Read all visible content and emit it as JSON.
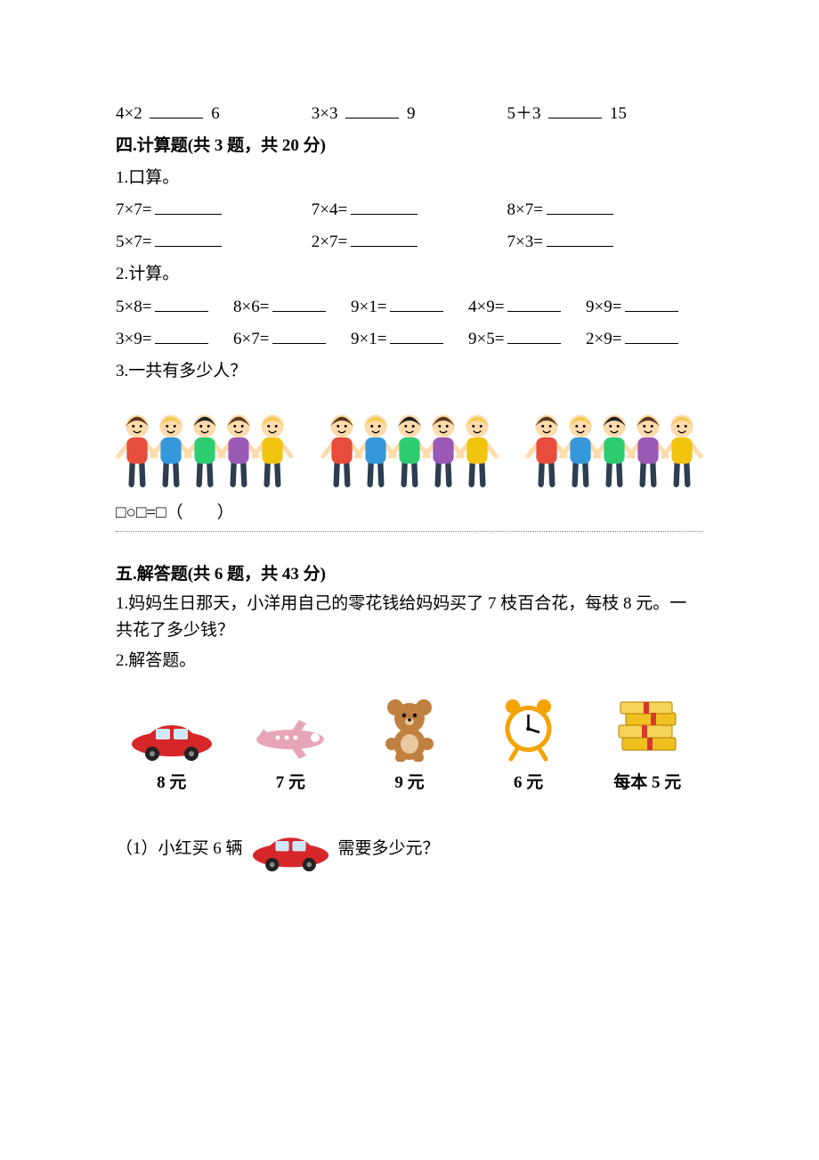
{
  "topRow": {
    "a": "4×2",
    "a_rhs": "6",
    "b": "3×3",
    "b_rhs": "9",
    "c": "5＋3",
    "c_rhs": "15"
  },
  "section4": {
    "heading": "四.计算题(共 3 题，共 20 分)",
    "q1_label": "1.口算。",
    "q1_row1": {
      "a": "7×7=",
      "b": "7×4=",
      "c": "8×7="
    },
    "q1_row2": {
      "a": "5×7=",
      "b": "2×7=",
      "c": "7×3="
    },
    "q2_label": "2.计算。",
    "q2_row1": {
      "a": "5×8=",
      "b": "8×6=",
      "c": "9×1=",
      "d": "4×9=",
      "e": "9×9="
    },
    "q2_row2": {
      "a": "3×9=",
      "b": "6×7=",
      "c": "9×1=",
      "d": "9×5=",
      "e": "2×9="
    },
    "q3_label": "3.一共有多少人？",
    "q3_equation": "□○□=□（　　）"
  },
  "section5": {
    "heading": "五.解答题(共 6 题，共 43 分)",
    "q1": "1.妈妈生日那天，小洋用自己的零花钱给妈妈买了 7 枝百合花，每枝 8 元。一共花了多少钱？",
    "q2_label": "2.解答题。",
    "items": [
      {
        "name": "car-icon",
        "price": "8 元"
      },
      {
        "name": "plane-icon",
        "price": "7 元"
      },
      {
        "name": "bear-icon",
        "price": "9 元"
      },
      {
        "name": "clock-icon",
        "price": "6 元"
      },
      {
        "name": "books-icon",
        "price": "每本 5 元"
      }
    ],
    "sub1_prefix": "（1）小红买 6 辆",
    "sub1_suffix": "需要多少元？"
  },
  "children": {
    "group_count": 3,
    "per_group": 5
  },
  "colors": {
    "text": "#000000",
    "dotted": "#808080",
    "car_red": "#d62728",
    "plane_pink": "#e7a6b7",
    "bear_brown": "#c08040",
    "clock_orange": "#f4a300",
    "book_yellow": "#f0c020",
    "skin": "#ffdbac",
    "hair1": "#5b3a1e",
    "hair2": "#f2c94c",
    "hair3": "#222222",
    "shirt1": "#e74c3c",
    "shirt2": "#3498db",
    "shirt3": "#2ecc71",
    "shirt4": "#9b59b6",
    "shirt5": "#f1c40f",
    "pants": "#2c3e50"
  }
}
